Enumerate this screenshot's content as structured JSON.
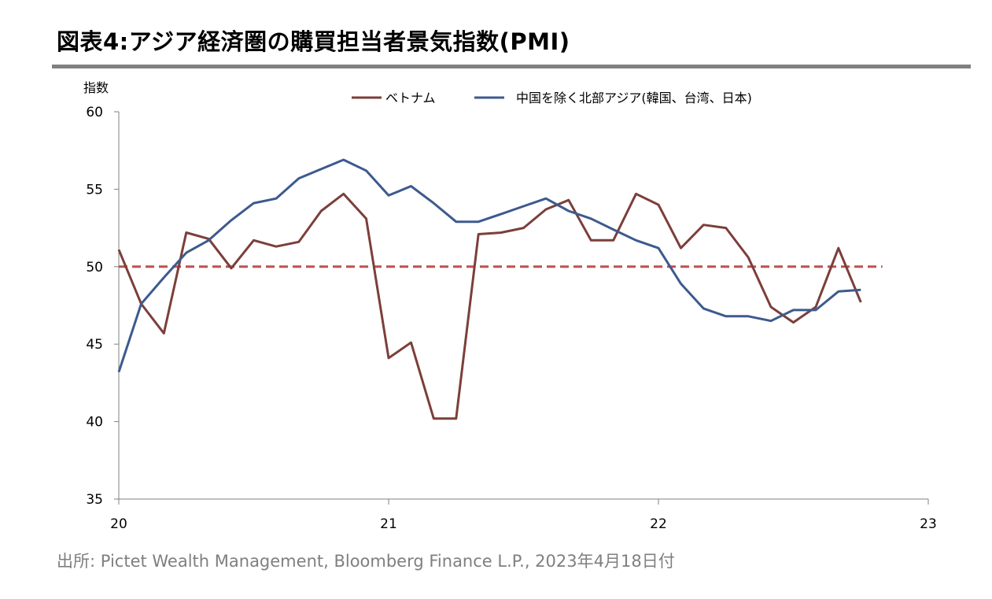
{
  "title": "図表4:アジア経済圏の購買担当者景気指数(PMI)",
  "source": "出所: Pictet Wealth Management, Bloomberg Finance L.P., 2023年4月18日付",
  "chart_data": {
    "type": "line",
    "ylabel": "指数",
    "ylim": [
      35,
      60
    ],
    "yticks": [
      35,
      40,
      45,
      50,
      55,
      60
    ],
    "xlim": [
      20,
      23
    ],
    "xticks": [
      20,
      21,
      22,
      23
    ],
    "xtick_labels": [
      "20",
      "21",
      "22",
      "23"
    ],
    "reference_line": {
      "value": 50,
      "color": "#C0504D",
      "style": "dashed"
    },
    "legend_position": "top-center",
    "series": [
      {
        "name": "ベトナム",
        "color": "#7B3F3A",
        "points": [
          [
            20.0,
            51.1
          ],
          [
            20.083,
            47.6
          ],
          [
            20.167,
            45.7
          ],
          [
            20.25,
            52.2
          ],
          [
            20.333,
            51.8
          ],
          [
            20.417,
            49.9
          ],
          [
            20.5,
            51.7
          ],
          [
            20.583,
            51.3
          ],
          [
            20.667,
            51.6
          ],
          [
            20.75,
            53.6
          ],
          [
            20.833,
            54.7
          ],
          [
            20.917,
            53.1
          ],
          [
            21.0,
            44.1
          ],
          [
            21.083,
            45.1
          ],
          [
            21.167,
            40.2
          ],
          [
            21.25,
            40.2
          ],
          [
            21.333,
            52.1
          ],
          [
            21.417,
            52.2
          ],
          [
            21.5,
            52.5
          ],
          [
            21.583,
            53.7
          ],
          [
            21.667,
            54.3
          ],
          [
            21.75,
            51.7
          ],
          [
            21.833,
            51.7
          ],
          [
            21.917,
            54.7
          ],
          [
            22.0,
            54.0
          ],
          [
            22.083,
            51.2
          ],
          [
            22.167,
            52.7
          ],
          [
            22.25,
            52.5
          ],
          [
            22.333,
            50.6
          ],
          [
            22.417,
            47.4
          ],
          [
            22.5,
            46.4
          ],
          [
            22.583,
            47.4
          ],
          [
            22.667,
            51.2
          ],
          [
            22.75,
            47.7
          ]
        ]
      },
      {
        "name": "中国を除く北部アジア(韓国、台湾、日本)",
        "color": "#3D5A8E",
        "points": [
          [
            20.0,
            43.2
          ],
          [
            20.083,
            47.6
          ],
          [
            20.167,
            49.3
          ],
          [
            20.25,
            50.9
          ],
          [
            20.333,
            51.7
          ],
          [
            20.417,
            53.0
          ],
          [
            20.5,
            54.1
          ],
          [
            20.583,
            54.4
          ],
          [
            20.667,
            55.7
          ],
          [
            20.75,
            56.3
          ],
          [
            20.833,
            56.9
          ],
          [
            20.917,
            56.2
          ],
          [
            21.0,
            54.6
          ],
          [
            21.083,
            55.2
          ],
          [
            21.167,
            54.1
          ],
          [
            21.25,
            52.9
          ],
          [
            21.333,
            52.9
          ],
          [
            21.417,
            53.4
          ],
          [
            21.5,
            53.9
          ],
          [
            21.583,
            54.4
          ],
          [
            21.667,
            53.6
          ],
          [
            21.75,
            53.1
          ],
          [
            21.833,
            52.4
          ],
          [
            21.917,
            51.7
          ],
          [
            22.0,
            51.2
          ],
          [
            22.083,
            48.9
          ],
          [
            22.167,
            47.3
          ],
          [
            22.25,
            46.8
          ],
          [
            22.333,
            46.8
          ],
          [
            22.417,
            46.5
          ],
          [
            22.5,
            47.2
          ],
          [
            22.583,
            47.2
          ],
          [
            22.667,
            48.4
          ],
          [
            22.75,
            48.5
          ]
        ]
      }
    ]
  }
}
